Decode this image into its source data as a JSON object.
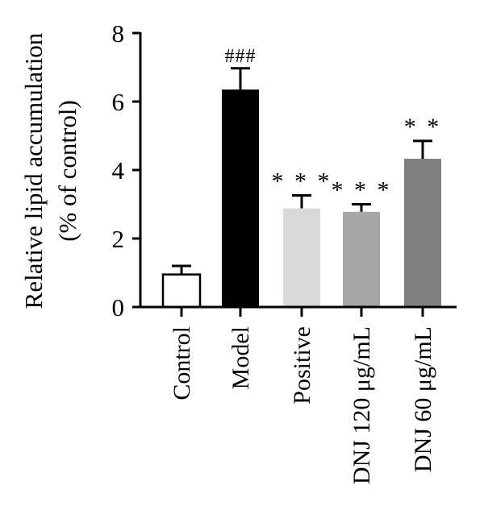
{
  "chart_data": {
    "type": "bar",
    "ylabel_line1": "Relative lipid accumulation",
    "ylabel_line2": "(% of control)",
    "xlabel": "",
    "ylim": [
      0,
      8
    ],
    "yticks": [
      0,
      2,
      4,
      6,
      8
    ],
    "categories": [
      "Control",
      "Model",
      "Positive",
      "DNJ 120 μg/mL",
      "DNJ 60 μg/mL"
    ],
    "values": [
      0.95,
      6.35,
      2.88,
      2.78,
      4.33
    ],
    "errors": [
      0.25,
      0.62,
      0.38,
      0.22,
      0.52
    ],
    "annotations": [
      "",
      "###",
      "* * *",
      "* * *",
      "* *"
    ],
    "colors": [
      "#ffffff",
      "#000000",
      "#d9d9d9",
      "#a6a6a6",
      "#808080"
    ],
    "grid": false,
    "legend": "none"
  }
}
